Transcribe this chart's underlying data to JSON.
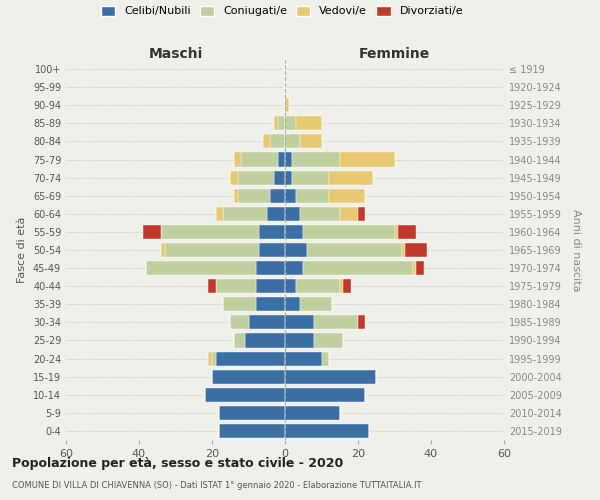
{
  "age_groups": [
    "0-4",
    "5-9",
    "10-14",
    "15-19",
    "20-24",
    "25-29",
    "30-34",
    "35-39",
    "40-44",
    "45-49",
    "50-54",
    "55-59",
    "60-64",
    "65-69",
    "70-74",
    "75-79",
    "80-84",
    "85-89",
    "90-94",
    "95-99",
    "100+"
  ],
  "birth_years": [
    "2015-2019",
    "2010-2014",
    "2005-2009",
    "2000-2004",
    "1995-1999",
    "1990-1994",
    "1985-1989",
    "1980-1984",
    "1975-1979",
    "1970-1974",
    "1965-1969",
    "1960-1964",
    "1955-1959",
    "1950-1954",
    "1945-1949",
    "1940-1944",
    "1935-1939",
    "1930-1934",
    "1925-1929",
    "1920-1924",
    "≤ 1919"
  ],
  "colors": {
    "celibi": "#3B6EA5",
    "coniugati": "#BFCF9E",
    "vedovi": "#E8C870",
    "divorziati": "#C0392B"
  },
  "maschi": {
    "celibi": [
      18,
      18,
      22,
      20,
      19,
      11,
      10,
      8,
      8,
      8,
      7,
      7,
      5,
      4,
      3,
      2,
      0,
      0,
      0,
      0,
      0
    ],
    "coniugati": [
      0,
      0,
      0,
      0,
      1,
      3,
      5,
      9,
      11,
      30,
      26,
      27,
      12,
      9,
      10,
      10,
      4,
      2,
      0,
      0,
      0
    ],
    "vedovi": [
      0,
      0,
      0,
      0,
      1,
      0,
      0,
      0,
      0,
      0,
      1,
      0,
      2,
      1,
      2,
      2,
      2,
      1,
      0,
      0,
      0
    ],
    "divorziati": [
      0,
      0,
      0,
      0,
      0,
      0,
      0,
      0,
      2,
      0,
      0,
      5,
      0,
      0,
      0,
      0,
      0,
      0,
      0,
      0,
      0
    ]
  },
  "femmine": {
    "nubili": [
      23,
      15,
      22,
      25,
      10,
      8,
      8,
      4,
      3,
      5,
      6,
      5,
      4,
      3,
      2,
      2,
      0,
      0,
      0,
      0,
      0
    ],
    "coniugate": [
      0,
      0,
      0,
      0,
      2,
      8,
      12,
      9,
      12,
      30,
      26,
      25,
      11,
      9,
      10,
      13,
      4,
      3,
      0,
      0,
      0
    ],
    "vedove": [
      0,
      0,
      0,
      0,
      0,
      0,
      0,
      0,
      1,
      1,
      1,
      1,
      5,
      10,
      12,
      15,
      6,
      7,
      1,
      0,
      0
    ],
    "divorziate": [
      0,
      0,
      0,
      0,
      0,
      0,
      2,
      0,
      2,
      2,
      6,
      5,
      2,
      0,
      0,
      0,
      0,
      0,
      0,
      0,
      0
    ]
  },
  "xlim": 60,
  "title": "Popolazione per età, sesso e stato civile - 2020",
  "subtitle": "COMUNE DI VILLA DI CHIAVENNA (SO) - Dati ISTAT 1° gennaio 2020 - Elaborazione TUTTAITALIA.IT",
  "xlabel_left": "Maschi",
  "xlabel_right": "Femmine",
  "ylabel": "Fasce di età",
  "ylabel_right": "Anni di nascita",
  "bg_color": "#f0f0eb"
}
